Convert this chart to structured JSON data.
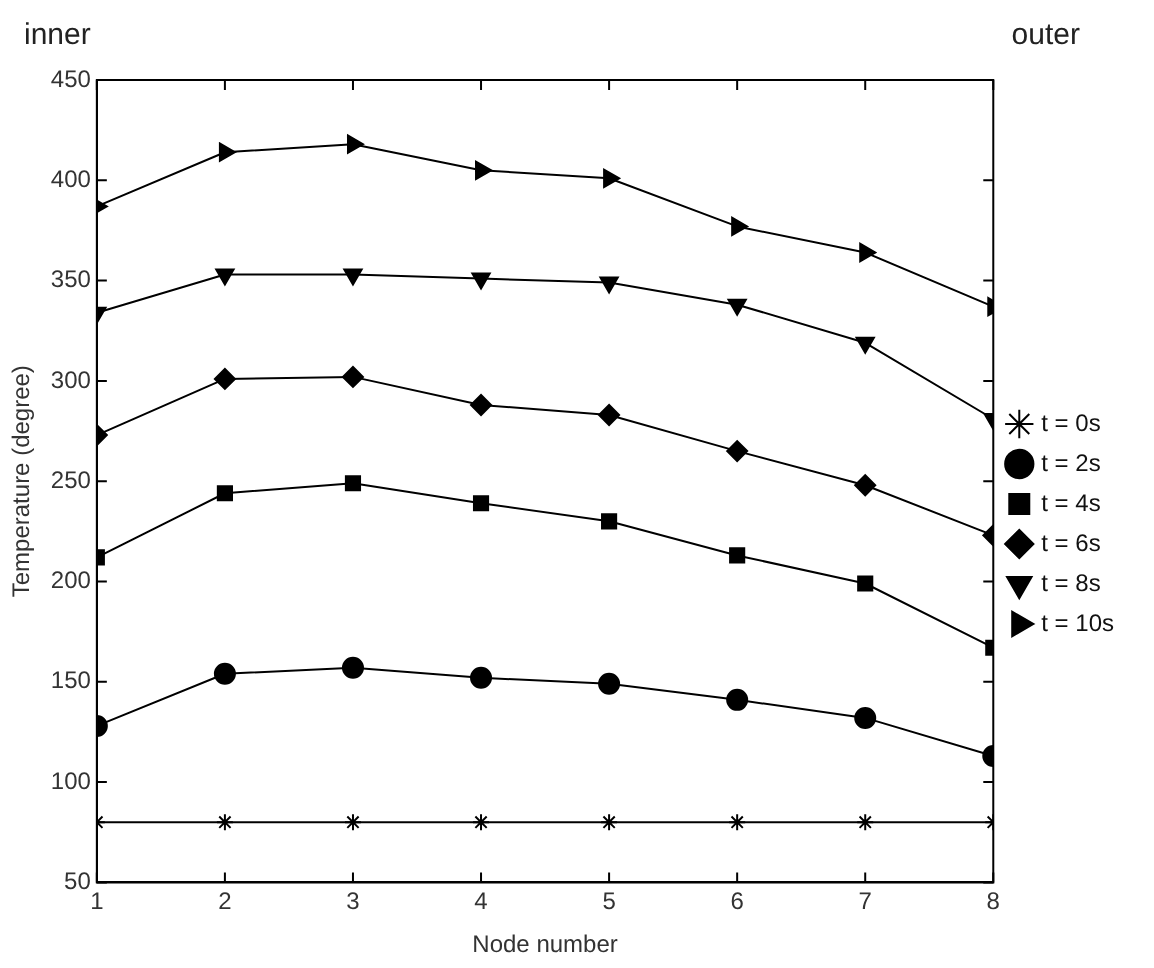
{
  "chart_data": {
    "type": "line",
    "xlabel": "Node number",
    "ylabel": "Temperature (degree)",
    "annotations": [
      "inner",
      "outer"
    ],
    "x": [
      1,
      2,
      3,
      4,
      5,
      6,
      7,
      8
    ],
    "series": [
      {
        "name": "t = 0s",
        "color": "#000000",
        "marker": "cross",
        "values": [
          80,
          80,
          80,
          80,
          80,
          80,
          80,
          80
        ]
      },
      {
        "name": "t = 2s",
        "color": "#000000",
        "marker": "circle",
        "values": [
          128,
          154,
          157,
          152,
          149,
          141,
          132,
          113
        ]
      },
      {
        "name": "t = 4s",
        "color": "#000000",
        "marker": "square",
        "values": [
          212,
          244,
          249,
          239,
          230,
          213,
          199,
          167
        ]
      },
      {
        "name": "t = 6s",
        "color": "#000000",
        "marker": "diamond",
        "values": [
          273,
          301,
          302,
          288,
          283,
          265,
          248,
          223
        ]
      },
      {
        "name": "t = 8s",
        "color": "#000000",
        "marker": "triangle-down",
        "values": [
          334,
          353,
          353,
          351,
          349,
          338,
          319,
          281
        ]
      },
      {
        "name": "t = 10s",
        "color": "#000000",
        "marker": "triangle-right",
        "values": [
          387,
          414,
          418,
          405,
          401,
          377,
          364,
          337
        ]
      }
    ],
    "xlim": [
      1,
      8
    ],
    "xticks": [
      1,
      2,
      3,
      4,
      5,
      6,
      7,
      8
    ],
    "ylim": [
      50,
      450
    ],
    "yticks": [
      50,
      100,
      150,
      200,
      250,
      300,
      350,
      400,
      450
    ],
    "grid": false,
    "legend": "right",
    "line_style": "solid"
  }
}
